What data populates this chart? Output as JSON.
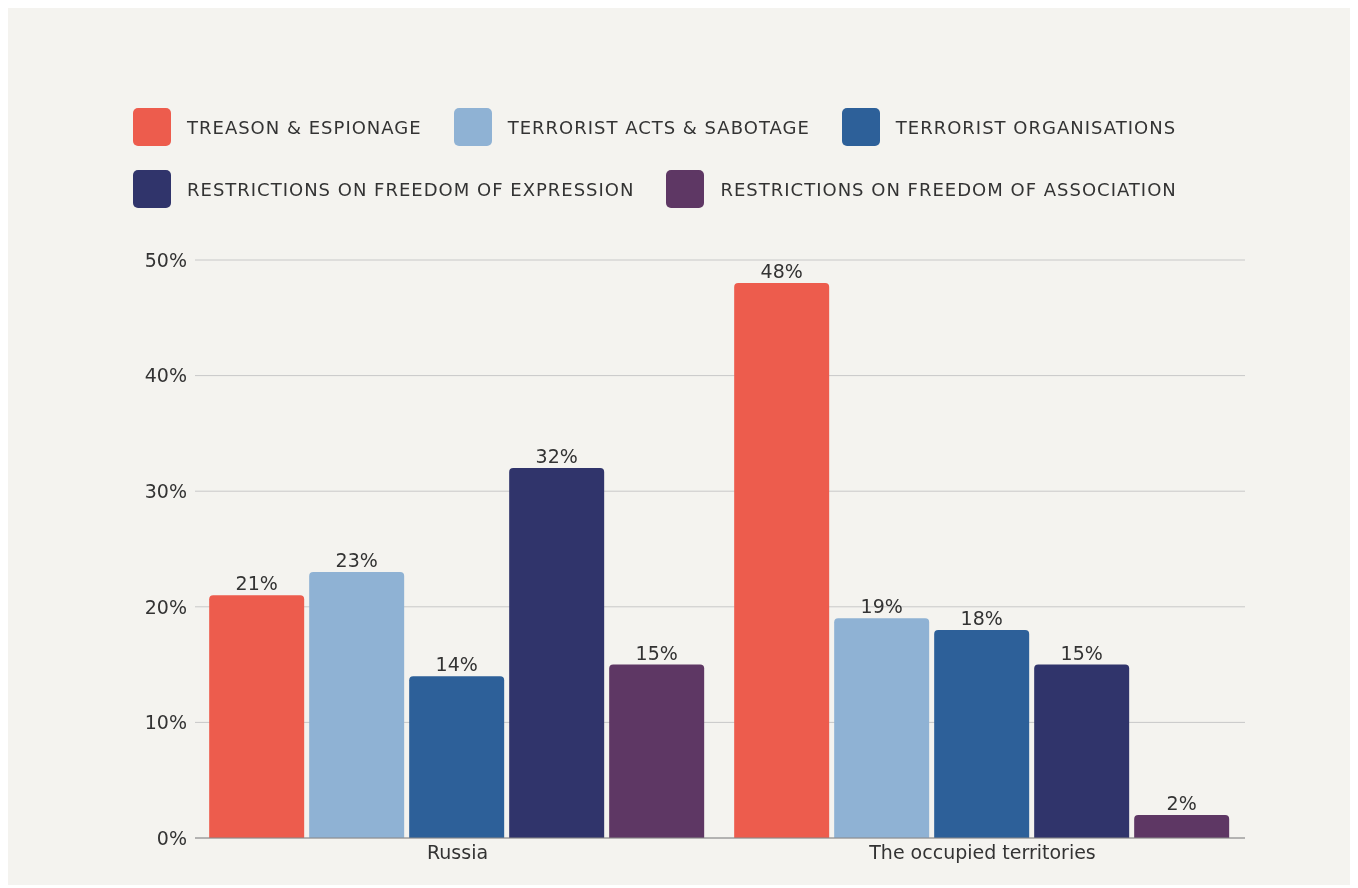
{
  "chart_data": {
    "type": "bar",
    "categories": [
      "Russia",
      "The occupied territories"
    ],
    "series": [
      {
        "name": "TREASON & ESPIONAGE",
        "color": "#ed5c4d",
        "values": [
          21,
          48
        ],
        "value_labels": [
          "21%",
          "48%"
        ]
      },
      {
        "name": "TERRORIST ACTS & SABOTAGE",
        "color": "#8fb2d4",
        "values": [
          23,
          19
        ],
        "value_labels": [
          "23%",
          "19%"
        ]
      },
      {
        "name": "TERRORIST ORGANISATIONS",
        "color": "#2d6099",
        "values": [
          14,
          18
        ],
        "value_labels": [
          "14%",
          "18%"
        ]
      },
      {
        "name": "RESTRICTIONS ON FREEDOM OF EXPRESSION",
        "color": "#30346b",
        "values": [
          32,
          15
        ],
        "value_labels": [
          "32%",
          "15%"
        ]
      },
      {
        "name": "RESTRICTIONS ON FREEDOM OF ASSOCIATION",
        "color": "#5e3764",
        "values": [
          15,
          2
        ],
        "value_labels": [
          "15%",
          "2%"
        ]
      }
    ],
    "ylim": [
      0,
      50
    ],
    "yticks": [
      {
        "value": 0,
        "label": "0%"
      },
      {
        "value": 10,
        "label": "10%"
      },
      {
        "value": 20,
        "label": "20%"
      },
      {
        "value": 30,
        "label": "30%"
      },
      {
        "value": 40,
        "label": "40%"
      },
      {
        "value": 50,
        "label": "50%"
      }
    ],
    "grid": "y",
    "legend": "top"
  }
}
